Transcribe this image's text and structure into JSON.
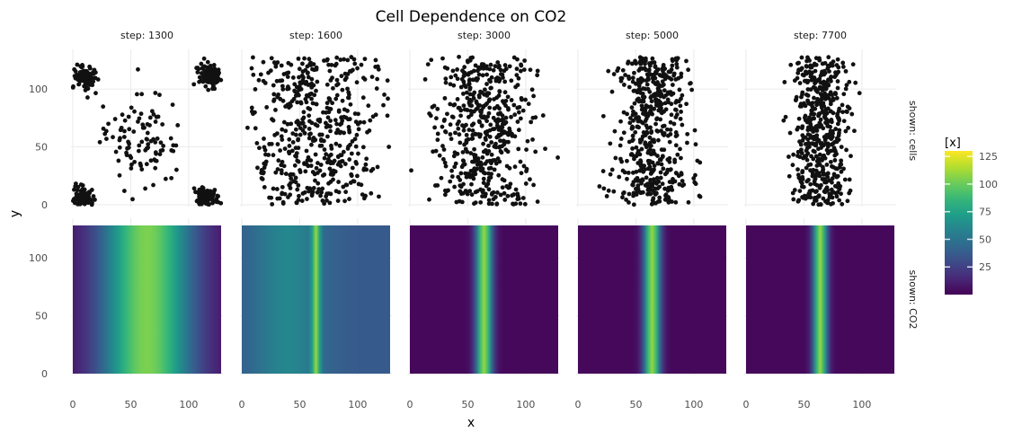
{
  "chart_data": {
    "type": "heatmap",
    "title": "Cell Dependence on CO2",
    "xlabel": "x",
    "ylabel": "y",
    "xlim": [
      0,
      128
    ],
    "ylim": [
      0,
      128
    ],
    "x_ticks": [
      0,
      50,
      100
    ],
    "y_ticks": [
      0,
      50,
      100
    ],
    "grid": true,
    "columns": [
      {
        "label": "step: 1300",
        "co2_width": 40,
        "cell_spread": 10
      },
      {
        "label": "step: 1600",
        "co2_width": 5,
        "cell_spread": 55
      },
      {
        "label": "step: 3000",
        "co2_width": 7,
        "cell_spread": 40
      },
      {
        "label": "step: 5000",
        "co2_width": 7,
        "cell_spread": 30
      },
      {
        "label": "step: 7700",
        "co2_width": 6,
        "cell_spread": 22
      }
    ],
    "rows": [
      {
        "label": "shown: cells",
        "kind": "scatter"
      },
      {
        "label": "shown: CO2",
        "kind": "heatmap"
      }
    ],
    "legend": {
      "title": "[x]",
      "ticks": [
        25,
        50,
        75,
        100,
        125
      ],
      "range": [
        0,
        130
      ],
      "placement": "right",
      "colormap": "viridis"
    }
  }
}
